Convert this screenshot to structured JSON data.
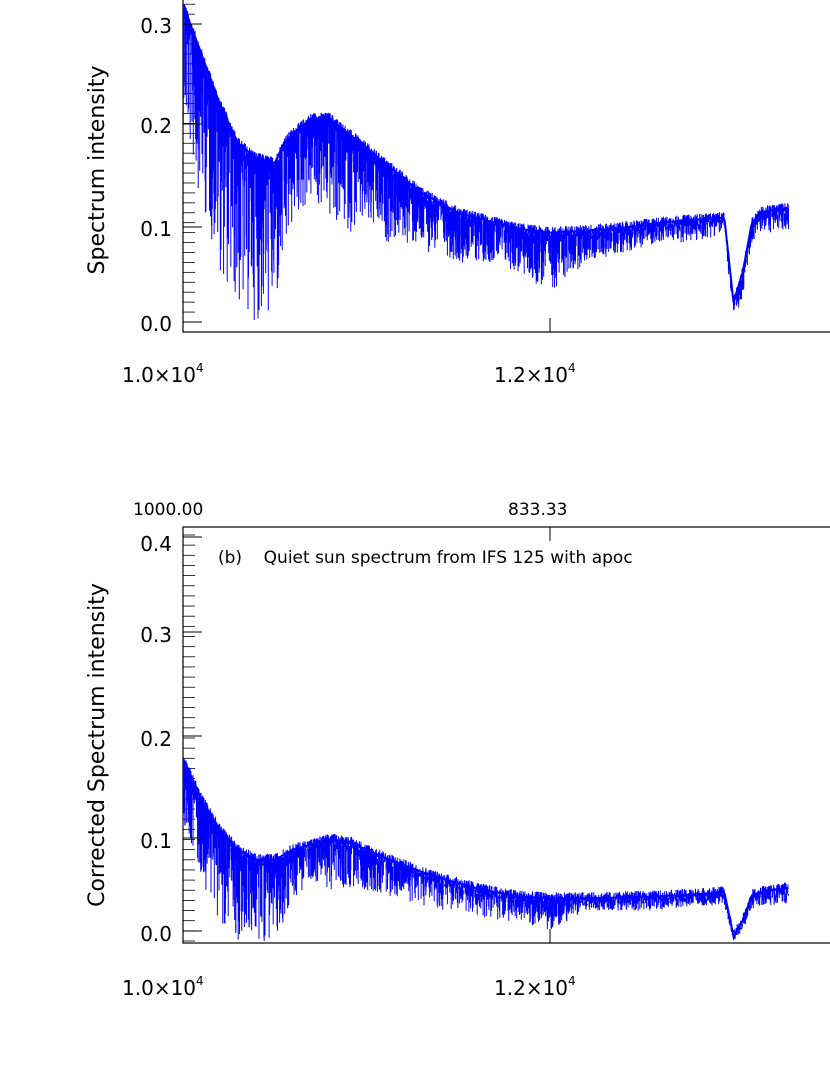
{
  "colors": {
    "series": "#0000ff",
    "axes": "#000000",
    "background": "#ffffff"
  },
  "chart_data": [
    {
      "type": "line",
      "title": "",
      "xlabel": "",
      "ylabel": "Spectrum intensity",
      "xlim": [
        10000,
        13300
      ],
      "ylim": [
        0,
        0.32
      ],
      "x_ticks": [
        {
          "value": 10000,
          "mantissa": "1.0",
          "times": "×10",
          "exponent": "4"
        },
        {
          "value": 12000,
          "mantissa": "1.2",
          "times": "×10",
          "exponent": "4"
        }
      ],
      "y_ticks": [
        {
          "value": 0.0,
          "label": "0.0"
        },
        {
          "value": 0.1,
          "label": "0.1"
        },
        {
          "value": 0.2,
          "label": "0.2"
        },
        {
          "value": 0.3,
          "label": "0.3"
        }
      ],
      "grid": false,
      "series": [
        {
          "color": "#0000ff",
          "x": [
            10000,
            10100,
            10200,
            10300,
            10400,
            10500,
            10550,
            10600,
            10700,
            10800,
            10900,
            11000,
            11100,
            11200,
            11300,
            11400,
            11500,
            11600,
            11700,
            11800,
            11900,
            12000,
            12200,
            12400,
            12600,
            12800,
            12950,
            13000,
            13050,
            13100,
            13150,
            13200,
            13300
          ],
          "y": [
            0.32,
            0.27,
            0.22,
            0.18,
            0.165,
            0.16,
            0.18,
            0.19,
            0.205,
            0.205,
            0.19,
            0.175,
            0.16,
            0.145,
            0.13,
            0.12,
            0.11,
            0.105,
            0.1,
            0.095,
            0.092,
            0.09,
            0.092,
            0.095,
            0.1,
            0.103,
            0.105,
            0.02,
            0.05,
            0.1,
            0.11,
            0.112,
            0.115
          ],
          "lower": [
            0.2,
            0.12,
            0.05,
            0.01,
            0.0,
            0.0,
            0.05,
            0.1,
            0.12,
            0.1,
            0.09,
            0.09,
            0.08,
            0.08,
            0.07,
            0.07,
            0.06,
            0.06,
            0.06,
            0.05,
            0.04,
            0.03,
            0.06,
            0.07,
            0.08,
            0.08,
            0.09,
            0.0,
            0.02,
            0.08,
            0.09,
            0.09,
            0.09
          ]
        }
      ]
    },
    {
      "type": "line",
      "title": "",
      "xlabel": "",
      "ylabel": "Corrected Spectrum intensity",
      "annotation": "(b)    Quiet sun spectrum from IFS 125 with apoc",
      "xlim": [
        10000,
        13300
      ],
      "ylim": [
        0,
        0.41
      ],
      "x_ticks": [
        {
          "value": 10000,
          "mantissa": "1.0",
          "times": "×10",
          "exponent": "4"
        },
        {
          "value": 12000,
          "mantissa": "1.2",
          "times": "×10",
          "exponent": "4"
        }
      ],
      "top_ticks": [
        {
          "value": 10000,
          "label": "1000.00"
        },
        {
          "value": 12000,
          "label": "833.33"
        }
      ],
      "y_ticks": [
        {
          "value": 0.0,
          "label": "0.0"
        },
        {
          "value": 0.1,
          "label": "0.1"
        },
        {
          "value": 0.2,
          "label": "0.2"
        },
        {
          "value": 0.3,
          "label": "0.3"
        },
        {
          "value": 0.4,
          "label": "0.4"
        }
      ],
      "grid": false,
      "series": [
        {
          "color": "#0000ff",
          "x": [
            10000,
            10100,
            10200,
            10300,
            10400,
            10500,
            10550,
            10600,
            10700,
            10800,
            10900,
            11000,
            11100,
            11200,
            11300,
            11400,
            11500,
            11600,
            11700,
            11800,
            11900,
            12000,
            12200,
            12400,
            12600,
            12800,
            12950,
            13000,
            13050,
            13100,
            13150,
            13200,
            13300
          ],
          "y": [
            0.18,
            0.14,
            0.11,
            0.09,
            0.08,
            0.08,
            0.085,
            0.09,
            0.095,
            0.1,
            0.098,
            0.09,
            0.082,
            0.075,
            0.068,
            0.062,
            0.057,
            0.052,
            0.048,
            0.045,
            0.043,
            0.042,
            0.042,
            0.043,
            0.044,
            0.046,
            0.048,
            0.005,
            0.02,
            0.045,
            0.048,
            0.05,
            0.052
          ],
          "lower": [
            0.12,
            0.06,
            0.02,
            0.0,
            0.0,
            0.0,
            0.02,
            0.04,
            0.06,
            0.05,
            0.05,
            0.05,
            0.045,
            0.04,
            0.035,
            0.03,
            0.03,
            0.025,
            0.02,
            0.02,
            0.015,
            0.01,
            0.03,
            0.03,
            0.03,
            0.035,
            0.035,
            0.0,
            0.01,
            0.03,
            0.035,
            0.035,
            0.035
          ]
        }
      ]
    }
  ]
}
